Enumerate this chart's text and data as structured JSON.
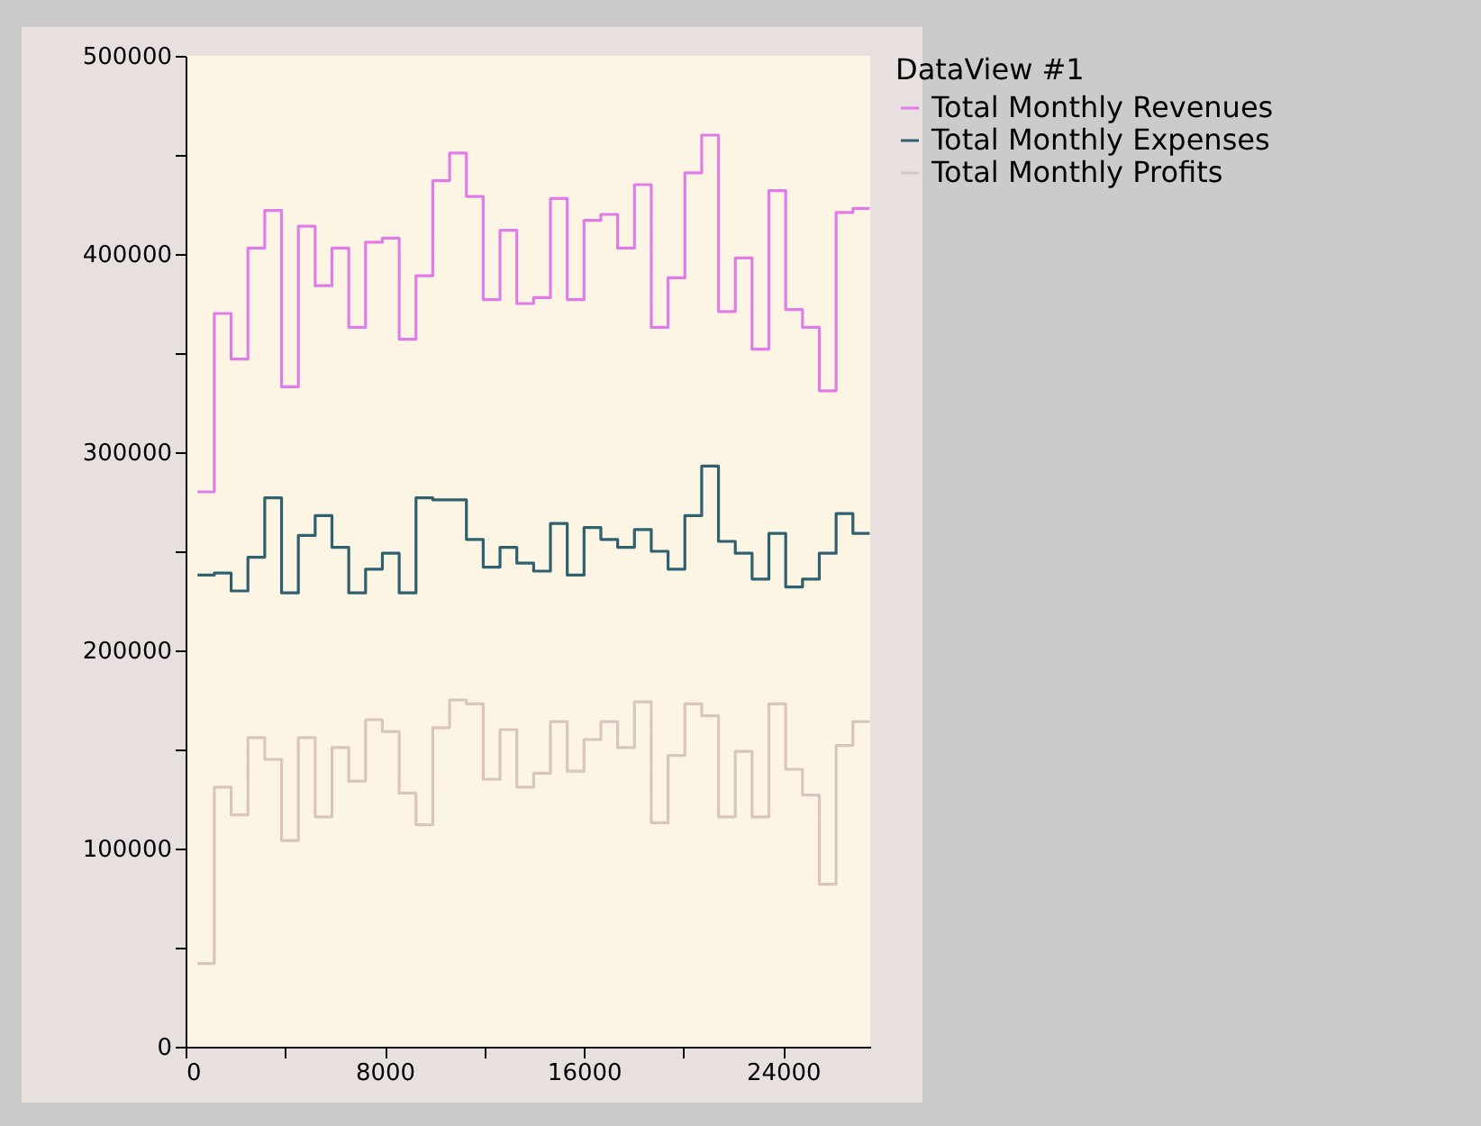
{
  "chart_data": {
    "type": "step",
    "legend_title": "DataView #1",
    "x": [
      480,
      1155,
      1830,
      2505,
      3180,
      3855,
      4530,
      5205,
      5880,
      6555,
      7230,
      7905,
      8580,
      9255,
      9930,
      10605,
      11280,
      11955,
      12630,
      13305,
      13980,
      14655,
      15330,
      16005,
      16680,
      17355,
      18030,
      18705,
      19380,
      20055,
      20730,
      21405,
      22080,
      22755,
      23430,
      24105,
      24780,
      25455,
      26130,
      26805,
      27480
    ],
    "series": [
      {
        "name": "Total Monthly Revenues",
        "color": "#e07ce8",
        "values": [
          280000,
          370000,
          347000,
          403000,
          422000,
          333000,
          414000,
          384000,
          403000,
          363000,
          406000,
          408000,
          357000,
          389000,
          437000,
          451000,
          429000,
          377000,
          412000,
          375000,
          378000,
          428000,
          377000,
          417000,
          420000,
          403000,
          435000,
          363000,
          388000,
          441000,
          460000,
          371000,
          398000,
          352000,
          432000,
          372000,
          363000,
          331000,
          421000,
          423000,
          423000
        ]
      },
      {
        "name": "Total Monthly Expenses",
        "color": "#2e6070",
        "values": [
          238000,
          239000,
          230000,
          247000,
          277000,
          229000,
          258000,
          268000,
          252000,
          229000,
          241000,
          249000,
          229000,
          277000,
          276000,
          276000,
          256000,
          242000,
          252000,
          244000,
          240000,
          264000,
          238000,
          262000,
          256000,
          252000,
          261000,
          250000,
          241000,
          268000,
          293000,
          255000,
          249000,
          236000,
          259000,
          232000,
          236000,
          249000,
          269000,
          259000,
          259000
        ]
      },
      {
        "name": "Total Monthly Profits",
        "color": "#d9c5bd",
        "values": [
          42000,
          131000,
          117000,
          156000,
          145000,
          104000,
          156000,
          116000,
          151000,
          134000,
          165000,
          159000,
          128000,
          112000,
          161000,
          175000,
          173000,
          135000,
          160000,
          131000,
          138000,
          164000,
          139000,
          155000,
          164000,
          151000,
          174000,
          113000,
          147000,
          173000,
          167000,
          116000,
          149000,
          116000,
          173000,
          140000,
          127000,
          82000,
          152000,
          164000,
          164000
        ]
      }
    ],
    "xlim": [
      0,
      27500
    ],
    "xticks": [
      0,
      {
        "value": 4000,
        "label": null
      },
      8000,
      {
        "value": 12000,
        "label": null
      },
      16000,
      {
        "value": 20000,
        "label": null
      },
      24000
    ],
    "ylim": [
      0,
      500000
    ],
    "yticks": [
      0,
      {
        "value": 50000,
        "label": null
      },
      100000,
      {
        "value": 150000,
        "label": null
      },
      200000,
      {
        "value": 250000,
        "label": null
      },
      300000,
      {
        "value": 350000,
        "label": null
      },
      400000,
      {
        "value": 450000,
        "label": null
      },
      500000
    ],
    "grid": false,
    "legend": "right"
  }
}
